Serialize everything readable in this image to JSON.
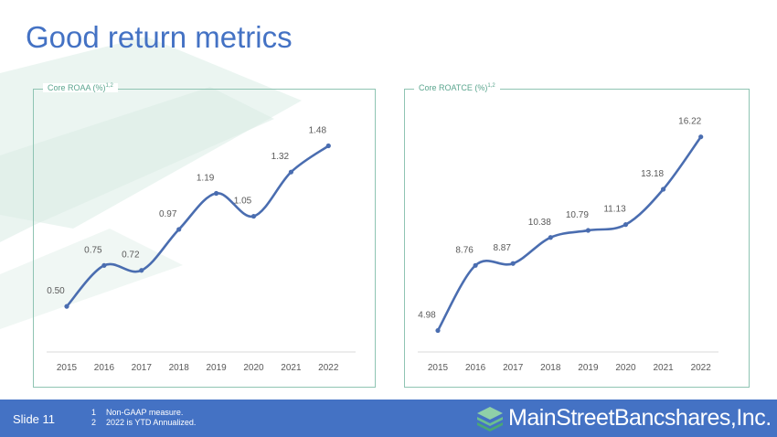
{
  "slide": {
    "title": "Good return metrics",
    "slide_label": "Slide 11",
    "footnotes": [
      {
        "num": "1",
        "text": "Non-GAAP measure."
      },
      {
        "num": "2",
        "text": "2022 is YTD Annualized."
      }
    ],
    "logo_text": "MainStreetBancshares,Inc.",
    "logo_icon": "stacked-layers-icon"
  },
  "colors": {
    "accent": "#4472c4",
    "line": "#4a6db0",
    "panel_border": "#8fc4b3",
    "panel_label": "#5aa58e",
    "label_text": "#595959"
  },
  "chart_data": [
    {
      "type": "line",
      "title": "Core ROAA (%)",
      "title_sup": "1,2",
      "categories": [
        "2015",
        "2016",
        "2017",
        "2018",
        "2019",
        "2020",
        "2021",
        "2022"
      ],
      "values": [
        0.5,
        0.75,
        0.72,
        0.97,
        1.19,
        1.05,
        1.32,
        1.48
      ],
      "value_labels": [
        "0.50",
        "0.75",
        "0.72",
        "0.97",
        "1.19",
        "1.05",
        "1.32",
        "1.48"
      ],
      "ylim": [
        0.3,
        1.6
      ],
      "grid": false,
      "smooth": true
    },
    {
      "type": "line",
      "title": "Core ROATCE (%)",
      "title_sup": "1,2",
      "categories": [
        "2015",
        "2016",
        "2017",
        "2018",
        "2019",
        "2020",
        "2021",
        "2022"
      ],
      "values": [
        4.98,
        8.76,
        8.87,
        10.38,
        10.79,
        11.13,
        13.18,
        16.22
      ],
      "value_labels": [
        "4.98",
        "8.76",
        "8.87",
        "10.38",
        "10.79",
        "11.13",
        "13.18",
        "16.22"
      ],
      "ylim": [
        4.0,
        17.0
      ],
      "grid": false,
      "smooth": true
    }
  ]
}
